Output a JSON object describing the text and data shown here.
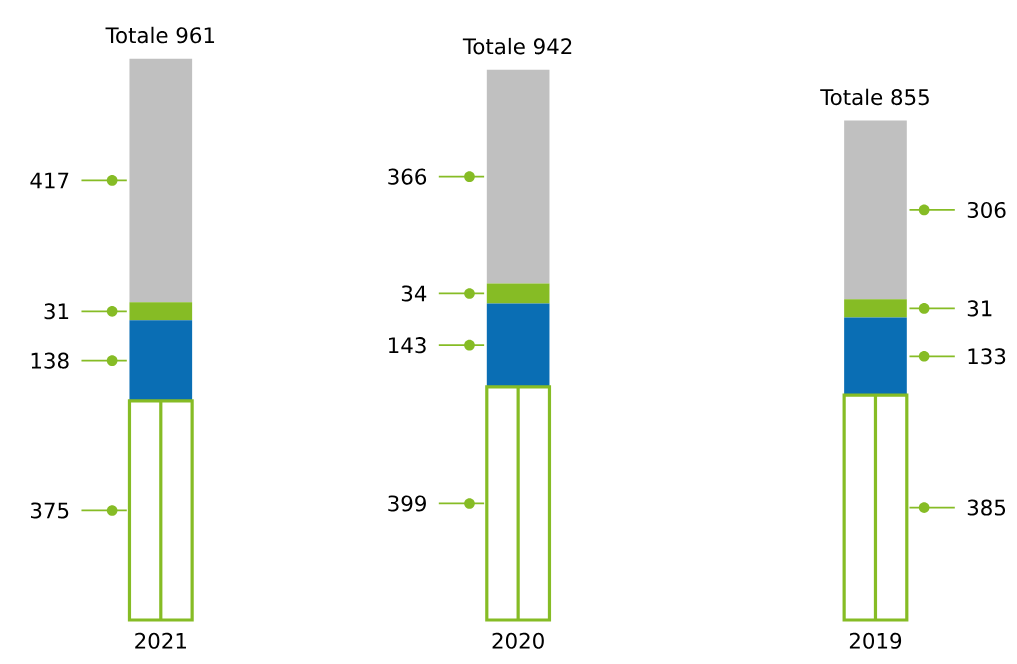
{
  "chart_data": {
    "type": "bar",
    "stacked": true,
    "categories": [
      "2021",
      "2020",
      "2019"
    ],
    "series": [
      {
        "color": "#86bc25",
        "values": [
          375,
          399,
          385
        ],
        "value_labels": [
          "375",
          "399",
          "385"
        ]
      },
      {
        "color": "#0a6eb4",
        "values": [
          138,
          143,
          133
        ],
        "value_labels": [
          "138",
          "143",
          "133"
        ]
      },
      {
        "color": "#86bc25",
        "values": [
          31,
          34,
          31
        ],
        "value_labels": [
          "31",
          "34",
          "31"
        ]
      },
      {
        "color": "#c0c0c0",
        "values": [
          417,
          366,
          306
        ],
        "value_labels": [
          "417",
          "366",
          "306"
        ]
      }
    ],
    "totals": [
      "Totale 961",
      "Totale 942",
      "Totale 855"
    ]
  }
}
